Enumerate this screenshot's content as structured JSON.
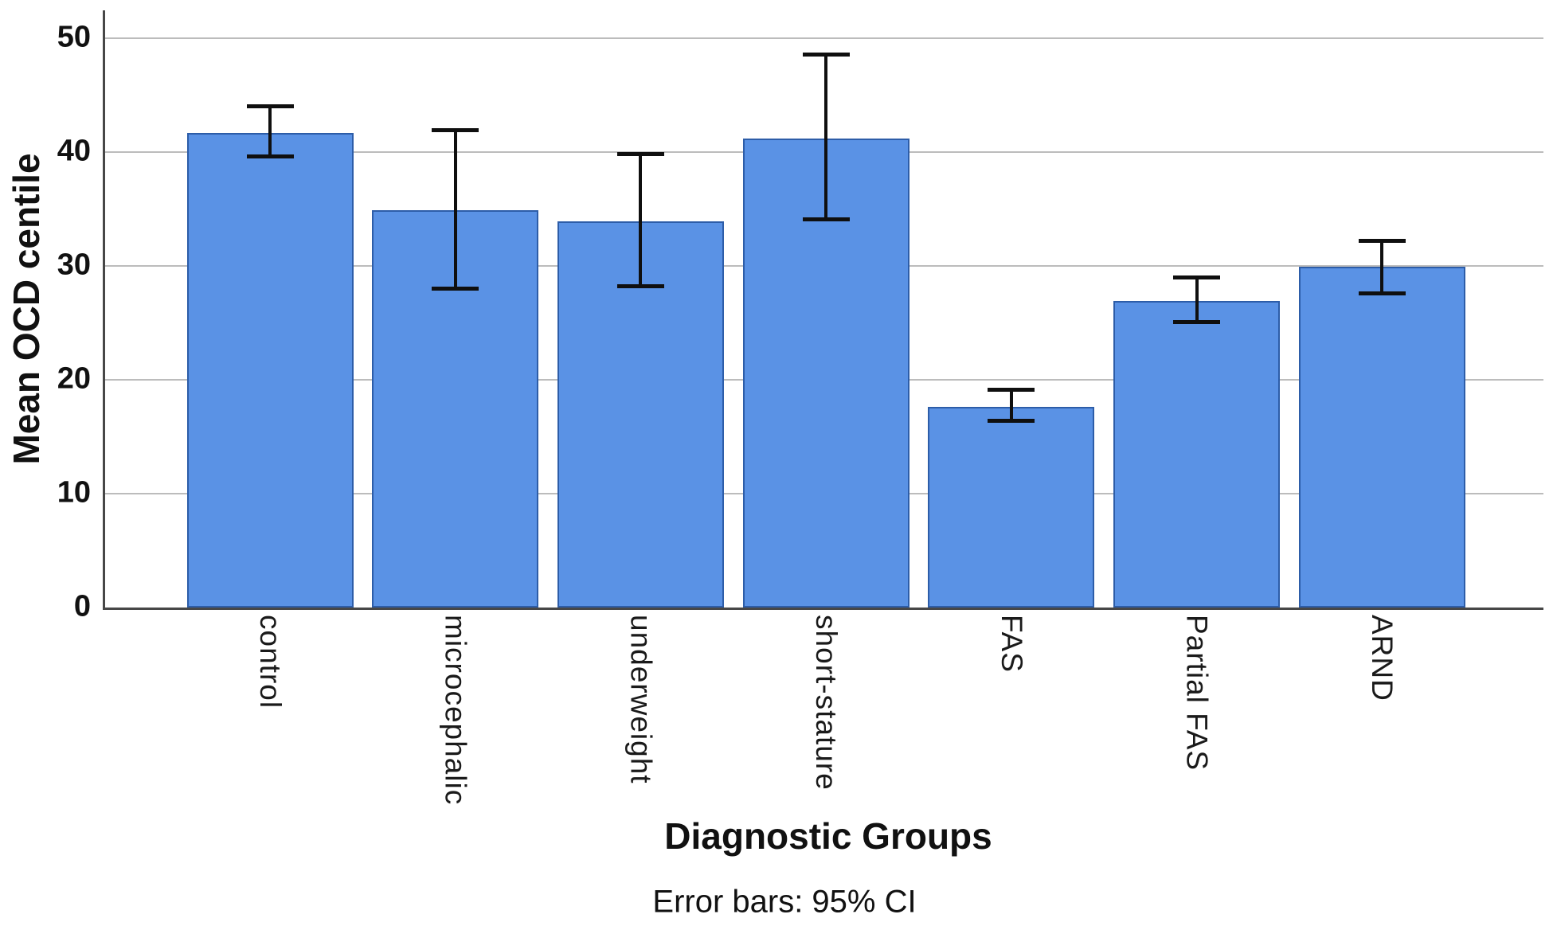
{
  "figure": {
    "y_axis_title": "Mean OCD centile",
    "x_axis_title": "Diagnostic Groups",
    "footnote": "Error bars: 95% CI"
  },
  "chart_data": {
    "type": "bar",
    "title": "",
    "xlabel": "Diagnostic Groups",
    "ylabel": "Mean OCD centile",
    "ylim": [
      0,
      50
    ],
    "yticks": [
      0,
      10,
      20,
      30,
      40,
      50
    ],
    "grid": "horizontal",
    "legend": "none",
    "error_bars": "95% CI",
    "categories": [
      "control",
      "microcephalic",
      "underweight",
      "short-stature",
      "FAS",
      "Partial FAS",
      "ARND"
    ],
    "values": [
      41.7,
      34.9,
      33.9,
      41.2,
      17.6,
      26.9,
      29.9
    ],
    "ci_low": [
      39.6,
      28.0,
      28.2,
      34.1,
      16.4,
      25.1,
      27.6
    ],
    "ci_high": [
      44.0,
      41.9,
      39.8,
      48.6,
      19.1,
      29.0,
      32.2
    ],
    "colors": {
      "bar_fill": "#5a92e5",
      "bar_border": "#2d5da8",
      "error_bar": "#0f0f0f",
      "gridline": "#bcbcbc",
      "axis_line": "#474747",
      "text": "#111111",
      "background": "#ffffff"
    }
  }
}
